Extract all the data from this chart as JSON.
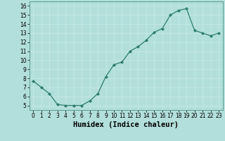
{
  "x": [
    0,
    1,
    2,
    3,
    4,
    5,
    6,
    7,
    8,
    9,
    10,
    11,
    12,
    13,
    14,
    15,
    16,
    17,
    18,
    19,
    20,
    21,
    22,
    23
  ],
  "y": [
    7.7,
    7.0,
    6.3,
    5.1,
    5.0,
    5.0,
    5.0,
    5.5,
    6.3,
    8.2,
    9.5,
    9.8,
    11.0,
    11.5,
    12.2,
    13.1,
    13.5,
    15.0,
    15.5,
    15.7,
    13.3,
    13.0,
    12.7,
    13.0
  ],
  "xlabel": "Humidex (Indice chaleur)",
  "xlim": [
    -0.5,
    23.5
  ],
  "ylim": [
    4.5,
    16.5
  ],
  "yticks": [
    5,
    6,
    7,
    8,
    9,
    10,
    11,
    12,
    13,
    14,
    15,
    16
  ],
  "xticks": [
    0,
    1,
    2,
    3,
    4,
    5,
    6,
    7,
    8,
    9,
    10,
    11,
    12,
    13,
    14,
    15,
    16,
    17,
    18,
    19,
    20,
    21,
    22,
    23
  ],
  "line_color": "#2e7d6e",
  "marker_color": "#2e7d6e",
  "bg_color": "#b2dfdb",
  "grid_color": "#c8e8e4",
  "tick_label_fontsize": 5.5,
  "xlabel_fontsize": 7.5
}
